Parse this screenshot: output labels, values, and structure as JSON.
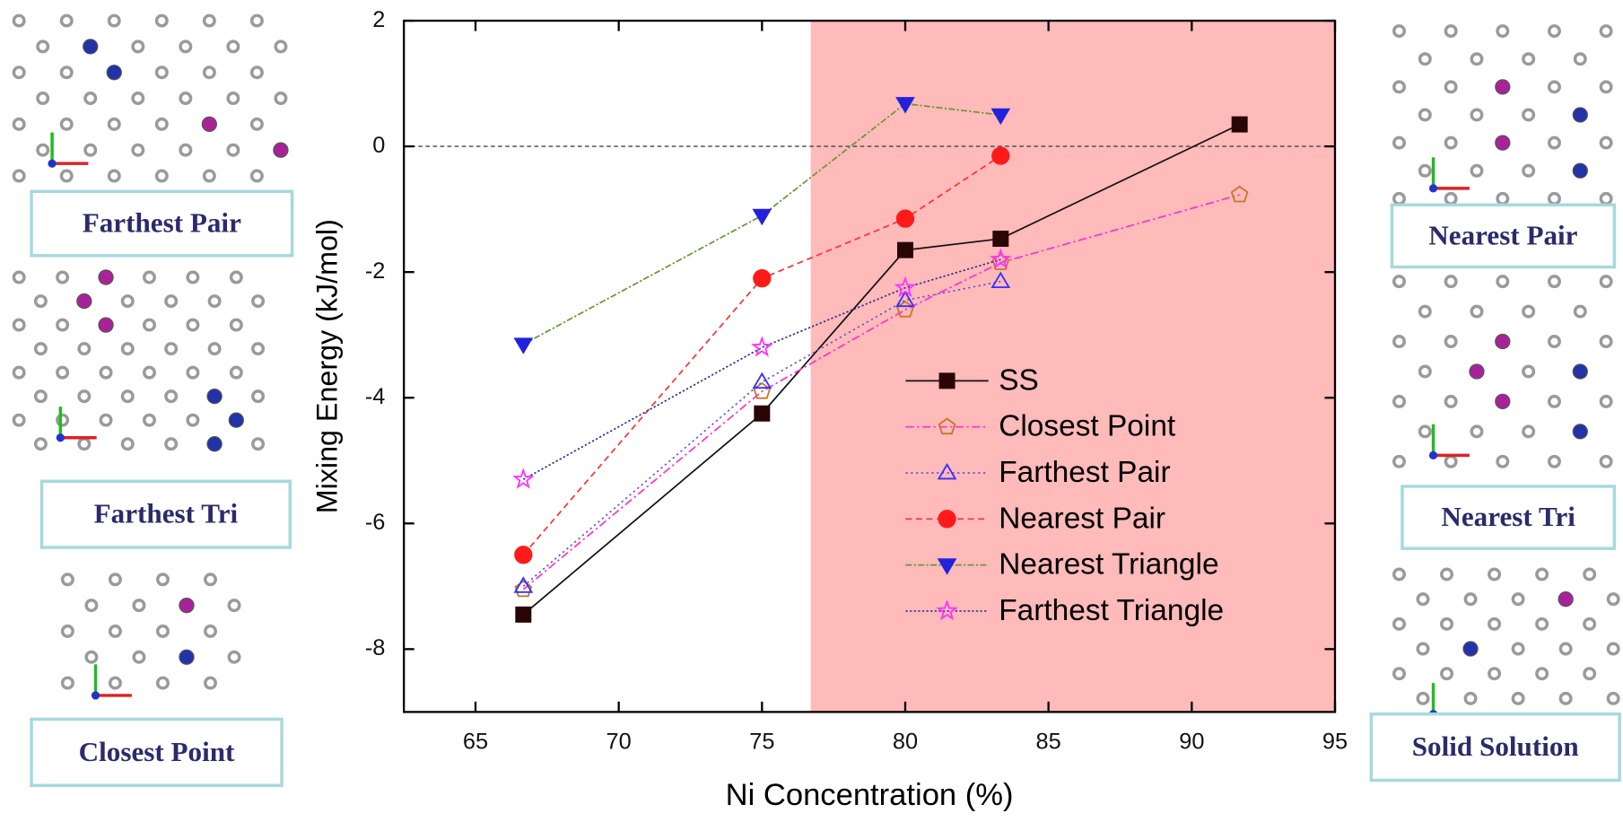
{
  "chart_data": {
    "type": "line",
    "x_label": "Ni Concentration (%)",
    "y_label": "Mixing Energy (kJ/mol)",
    "x": [
      66.67,
      75,
      80,
      83.33,
      91.67
    ],
    "xlim": [
      62.5,
      95
    ],
    "ylim": [
      -9,
      2
    ],
    "xticks": [
      65,
      70,
      75,
      80,
      85,
      90,
      95
    ],
    "yticks": [
      -8,
      -6,
      -4,
      -2,
      0,
      2
    ],
    "reference_line": 0,
    "highlight_xlim": [
      76.7,
      95
    ],
    "highlight_color": "#ffbaba",
    "legend_loc": "center right",
    "series": [
      {
        "name": "SS",
        "color": "#111111",
        "marker_color": "#2a0505",
        "marker": "square",
        "filled": true,
        "dash": "none",
        "values": [
          -7.45,
          -4.25,
          -1.65,
          -1.47,
          0.35
        ]
      },
      {
        "name": "Closest Point",
        "color": "#ff33cc",
        "marker_color": "#c8782a",
        "marker": "pentagon",
        "filled": false,
        "dash": "8 3 2 3",
        "values": [
          -7.05,
          -3.9,
          -2.6,
          -1.85,
          -0.77
        ]
      },
      {
        "name": "Farthest Pair",
        "color": "#6a5acd",
        "marker_color": "#3333ff",
        "marker": "triangle",
        "filled": false,
        "dash": "2 3",
        "values": [
          -7.0,
          -3.75,
          -2.45,
          -2.15,
          null
        ]
      },
      {
        "name": "Nearest Pair",
        "color": "#ff3333",
        "marker_color": "#ff1a1a",
        "marker": "circle",
        "filled": true,
        "dash": "6 4",
        "values": [
          -6.5,
          -2.1,
          -1.15,
          -0.15,
          null
        ]
      },
      {
        "name": "Nearest Triangle",
        "color": "#669933",
        "marker_color": "#2222dd",
        "marker": "triangle-down",
        "filled": true,
        "dash": "6 2 2 2",
        "values": [
          -3.15,
          -1.1,
          0.68,
          0.5,
          null
        ]
      },
      {
        "name": "Farthest Triangle",
        "color": "#333399",
        "marker_color": "#ff33ff",
        "marker": "star",
        "filled": false,
        "dash": "2 2",
        "values": [
          -5.3,
          -3.2,
          -2.25,
          -1.8,
          null
        ]
      }
    ]
  },
  "panels": [
    {
      "label": "Farthest Pair"
    },
    {
      "label": "Farthest Tri"
    },
    {
      "label": "Closest Point"
    },
    {
      "label": "Nearest Pair"
    },
    {
      "label": "Nearest Tri"
    },
    {
      "label": "Solid Solution"
    }
  ]
}
